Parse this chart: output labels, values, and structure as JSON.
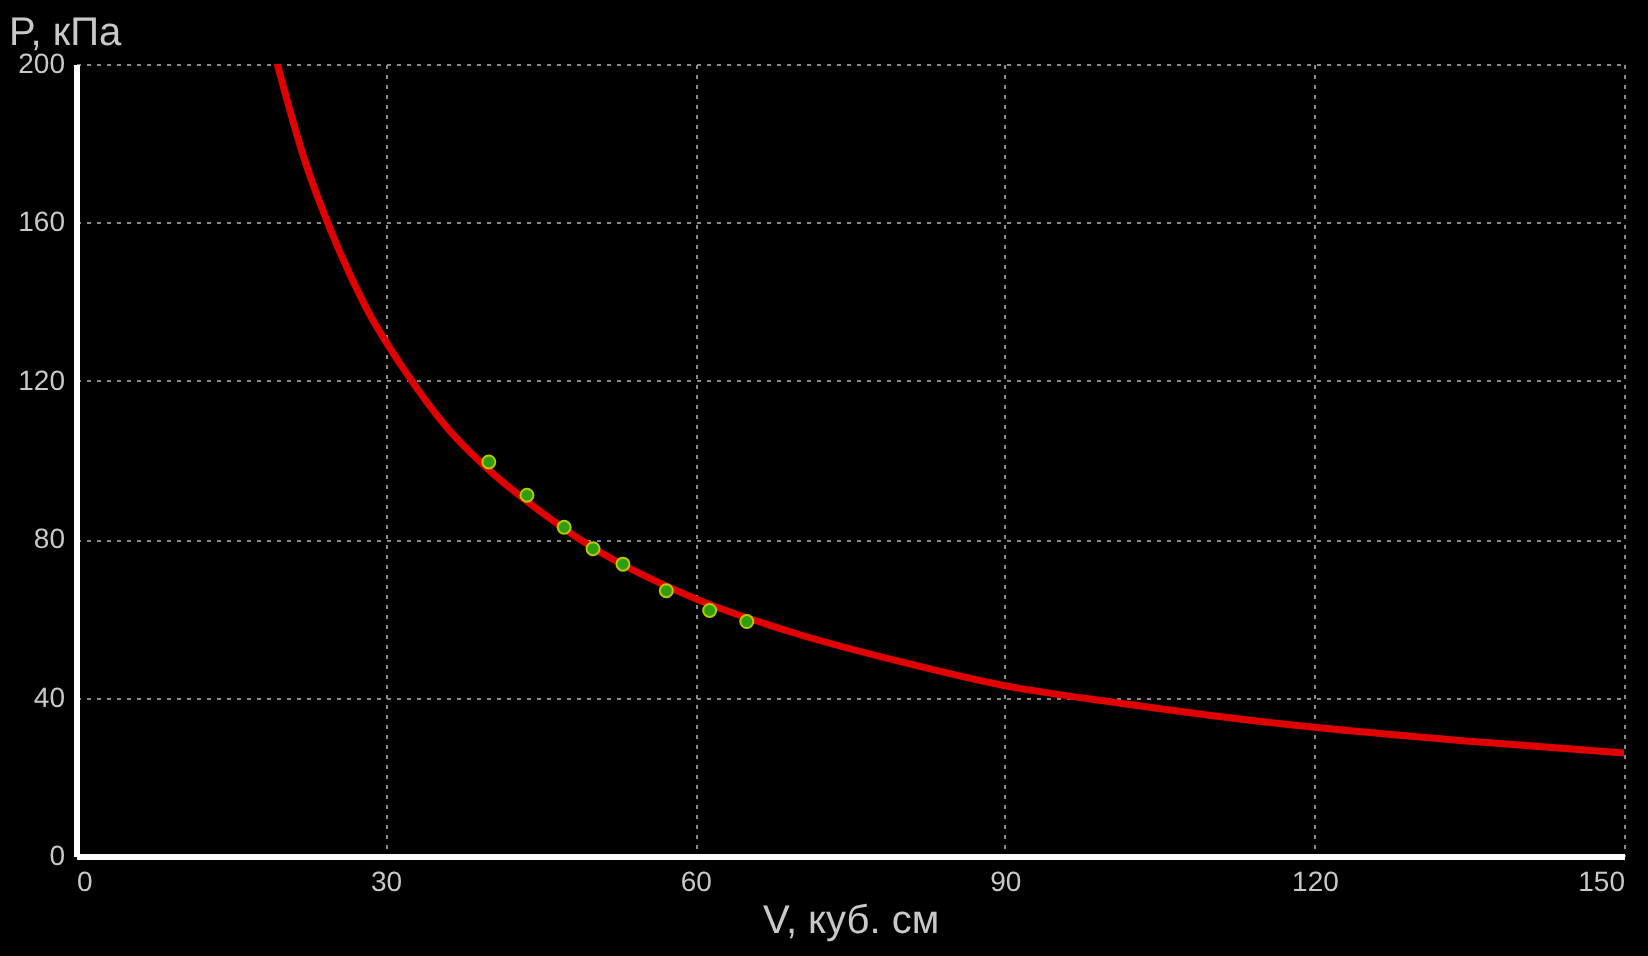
{
  "chart_data": {
    "type": "scatter",
    "xlabel": "V, куб. см",
    "ylabel": "P, кПа",
    "xlim": [
      0,
      150
    ],
    "xticks": [
      0,
      30,
      60,
      90,
      120,
      150
    ],
    "ylim": [
      0,
      200
    ],
    "yticks": [
      0,
      40,
      80,
      120,
      160,
      200
    ],
    "grid": true,
    "marker": "circle",
    "series": [
      {
        "color": "#2e9e10",
        "x": [
          40.0,
          43.7,
          47.3,
          50.1,
          53.0,
          57.2,
          61.4,
          65.0
        ],
        "values": [
          99.5,
          91.1,
          83.0,
          77.6,
          73.7,
          67.0,
          62.0,
          59.2
        ]
      },
      {
        "type": "line",
        "color": "#e00000",
        "marker": "none",
        "line_style": "solid",
        "x": [
          19.5,
          22,
          25,
          28,
          32,
          36,
          40,
          45,
          50,
          60,
          70,
          80,
          90,
          100,
          110,
          120,
          135,
          150
        ],
        "values": [
          200,
          177,
          156,
          139,
          122,
          108,
          97.5,
          87,
          78,
          65,
          56,
          49,
          43,
          39,
          35.5,
          32.5,
          29,
          26
        ]
      }
    ]
  }
}
